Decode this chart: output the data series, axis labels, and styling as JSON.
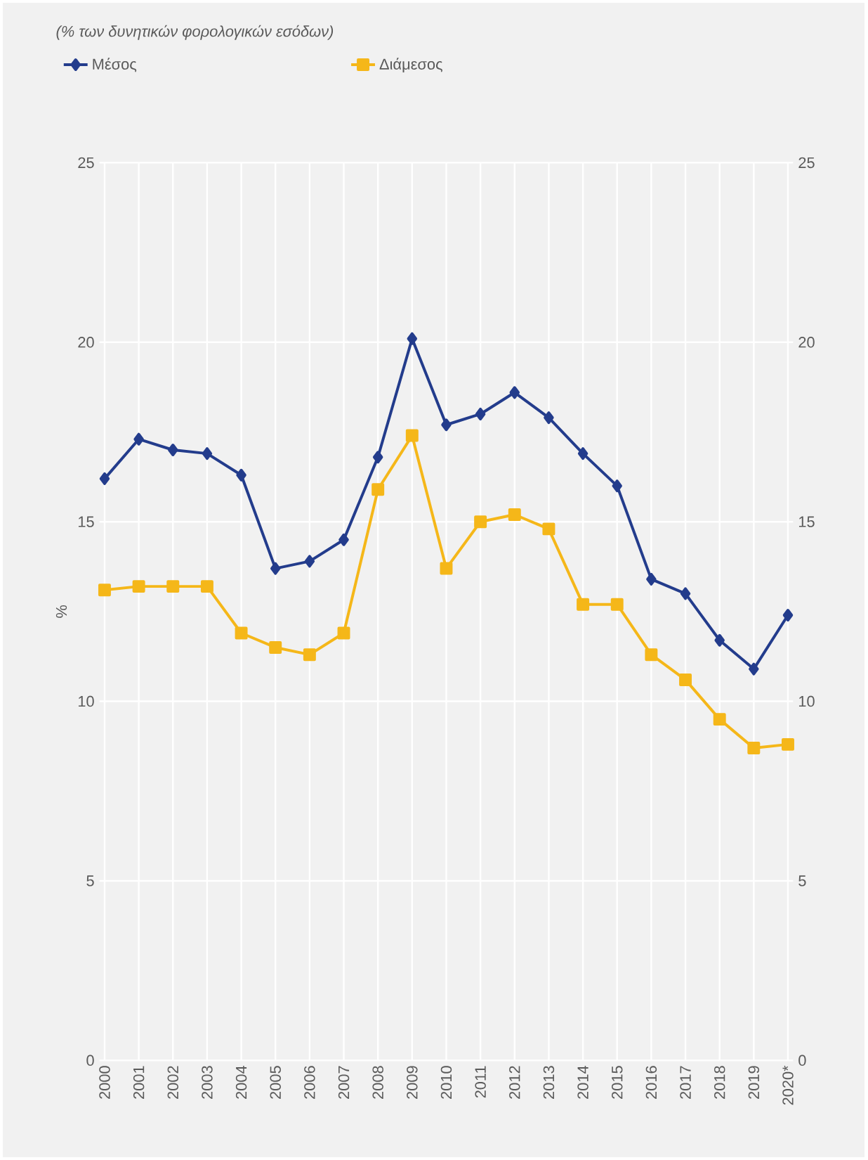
{
  "chart_data": {
    "type": "line",
    "title": "(% των δυνητικών φορολογικών εσόδων)",
    "ylabel": "%",
    "categories": [
      "2000",
      "2001",
      "2002",
      "2003",
      "2004",
      "2005",
      "2006",
      "2007",
      "2008",
      "2009",
      "2010",
      "2011",
      "2012",
      "2013",
      "2014",
      "2015",
      "2016",
      "2017",
      "2018",
      "2019",
      "2020*"
    ],
    "series": [
      {
        "name": "Μέσος",
        "color": "#233c8c",
        "marker": "diamond",
        "values": [
          16.2,
          17.3,
          17.0,
          16.9,
          16.3,
          13.7,
          13.9,
          14.5,
          16.8,
          20.1,
          17.7,
          18.0,
          18.6,
          17.9,
          16.9,
          16.0,
          13.4,
          13.0,
          11.7,
          10.9,
          12.4
        ]
      },
      {
        "name": "Διάμεσος",
        "color": "#f5b719",
        "marker": "square",
        "values": [
          13.1,
          13.2,
          13.2,
          13.2,
          11.9,
          11.5,
          11.3,
          11.9,
          15.9,
          17.4,
          13.7,
          15.0,
          15.2,
          14.8,
          12.7,
          12.7,
          11.3,
          10.6,
          9.5,
          8.7,
          8.8
        ]
      }
    ],
    "ylim": [
      0,
      25
    ],
    "yticks": [
      0,
      5,
      10,
      15,
      20,
      25
    ],
    "y2lim": [
      0,
      25
    ],
    "y2ticks": [
      0,
      5,
      10,
      15,
      20,
      25
    ],
    "grid": true,
    "legend": "top left",
    "line_style": "solid"
  }
}
